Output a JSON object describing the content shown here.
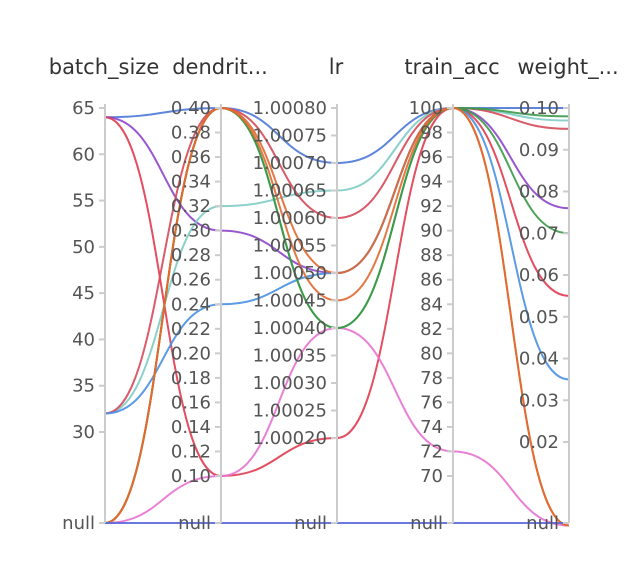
{
  "chart_data": {
    "type": "parallel_coordinates",
    "title": "",
    "axes": [
      {
        "key": "batch_size",
        "label": "batch_size",
        "range": [
          25,
          65
        ],
        "ticks": [
          "65",
          "60",
          "55",
          "50",
          "45",
          "40",
          "35",
          "30"
        ],
        "null_label": "null"
      },
      {
        "key": "dendrite",
        "label": "dendrit...",
        "range": [
          0.1,
          0.4
        ],
        "ticks": [
          "0.40",
          "0.38",
          "0.36",
          "0.34",
          "0.32",
          "0.30",
          "0.28",
          "0.26",
          "0.24",
          "0.22",
          "0.20",
          "0.18",
          "0.16",
          "0.14",
          "0.12",
          "0.10"
        ],
        "null_label": "null"
      },
      {
        "key": "lr",
        "label": "lr",
        "range": [
          1.0002,
          1.0008
        ],
        "ticks": [
          "1.00080",
          "1.00075",
          "1.00070",
          "1.00065",
          "1.00060",
          "1.00055",
          "1.00050",
          "1.00045",
          "1.00040",
          "1.00035",
          "1.00030",
          "1.00025",
          "1.00020"
        ],
        "null_label": "null"
      },
      {
        "key": "train_acc",
        "label": "train_acc",
        "range": [
          70,
          100
        ],
        "ticks": [
          "100",
          "98",
          "96",
          "94",
          "92",
          "90",
          "88",
          "86",
          "84",
          "82",
          "80",
          "78",
          "76",
          "74",
          "72",
          "70"
        ],
        "null_label": "null"
      },
      {
        "key": "weight",
        "label": "weight_...",
        "range": [
          0.02,
          0.1
        ],
        "ticks": [
          "0.10",
          "0.09",
          "0.08",
          "0.07",
          "0.06",
          "0.05",
          "0.04",
          "0.03",
          "0.02"
        ],
        "null_label": "null"
      }
    ],
    "series": [
      {
        "color": "#4c78d8",
        "values": [
          64,
          0.4,
          1.0007,
          100,
          0.1
        ]
      },
      {
        "color": "#8e44cc",
        "values": [
          64,
          0.3,
          1.0005,
          100,
          0.076
        ]
      },
      {
        "color": "#7ecbc4",
        "values": [
          32,
          0.32,
          1.00065,
          100,
          0.097
        ]
      },
      {
        "color": "#e03c50",
        "values": [
          64,
          0.1,
          1.0002,
          100,
          0.055
        ]
      },
      {
        "color": "#d64a5a",
        "values": [
          32,
          0.4,
          1.0006,
          100,
          0.095
        ]
      },
      {
        "color": "#4a90e2",
        "values": [
          32,
          0.24,
          1.0005,
          100,
          0.035
        ]
      },
      {
        "color": "#e872d2",
        "values": [
          null,
          0.1,
          1.0004,
          72,
          0.0
        ]
      },
      {
        "color": "#3a9a48",
        "values": [
          null,
          0.4,
          1.0004,
          100,
          0.098
        ]
      },
      {
        "color": "#3a9a48",
        "values": [
          null,
          0.4,
          1.0004,
          100,
          0.07
        ]
      },
      {
        "color": "#e06a30",
        "values": [
          null,
          0.4,
          1.00045,
          100,
          0.0
        ]
      },
      {
        "color": "#e06a30",
        "values": [
          null,
          0.4,
          1.0005,
          100,
          0.0
        ]
      },
      {
        "color": "#5a6adb",
        "values": [
          null,
          null,
          null,
          null,
          null
        ]
      }
    ],
    "grid": false,
    "legend": "none"
  }
}
